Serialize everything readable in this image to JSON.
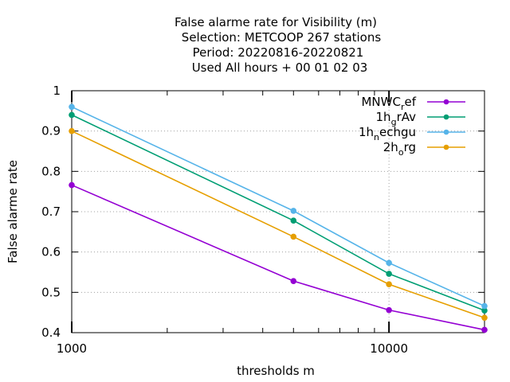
{
  "chart_data": {
    "type": "line",
    "title_lines": [
      "False alarme rate  for Visibility (m)",
      "Selection: METCOOP    267 stations",
      "Period: 20220816-20220821",
      "Used  All hours  + 00 01 02 03"
    ],
    "xlabel": "thresholds m",
    "ylabel": "False alarme rate",
    "x_scale": "log",
    "xlim": [
      1000,
      20000
    ],
    "ylim": [
      0.4,
      1.0
    ],
    "x_ticks": [
      1000,
      10000
    ],
    "x_tick_labels": [
      "1000",
      "10000"
    ],
    "y_ticks": [
      0.4,
      0.5,
      0.6,
      0.7,
      0.8,
      0.9,
      1.0
    ],
    "y_tick_labels": [
      "0.4",
      "0.5",
      "0.6",
      "0.7",
      "0.8",
      "0.9",
      "1"
    ],
    "grid": true,
    "legend_position": "top-right",
    "x": [
      1000,
      5000,
      10000,
      20000
    ],
    "series": [
      {
        "name": "MNWC_ref",
        "legend_main": "MNWC",
        "legend_sub": "r",
        "legend_rest": "ef",
        "color": "#9400d3",
        "values": [
          0.766,
          0.528,
          0.456,
          0.407
        ]
      },
      {
        "name": "1h_grAv",
        "legend_main": "1h",
        "legend_sub": "g",
        "legend_rest": "rAv",
        "color": "#009e73",
        "values": [
          0.94,
          0.678,
          0.546,
          0.455
        ]
      },
      {
        "name": "1h_nechgu",
        "legend_main": "1h",
        "legend_sub": "n",
        "legend_rest": "echgu",
        "color": "#56b4e9",
        "values": [
          0.96,
          0.702,
          0.573,
          0.466
        ]
      },
      {
        "name": "2h_org",
        "legend_main": "2h",
        "legend_sub": "o",
        "legend_rest": "rg",
        "color": "#e69f00",
        "values": [
          0.9,
          0.638,
          0.52,
          0.437
        ]
      }
    ]
  }
}
